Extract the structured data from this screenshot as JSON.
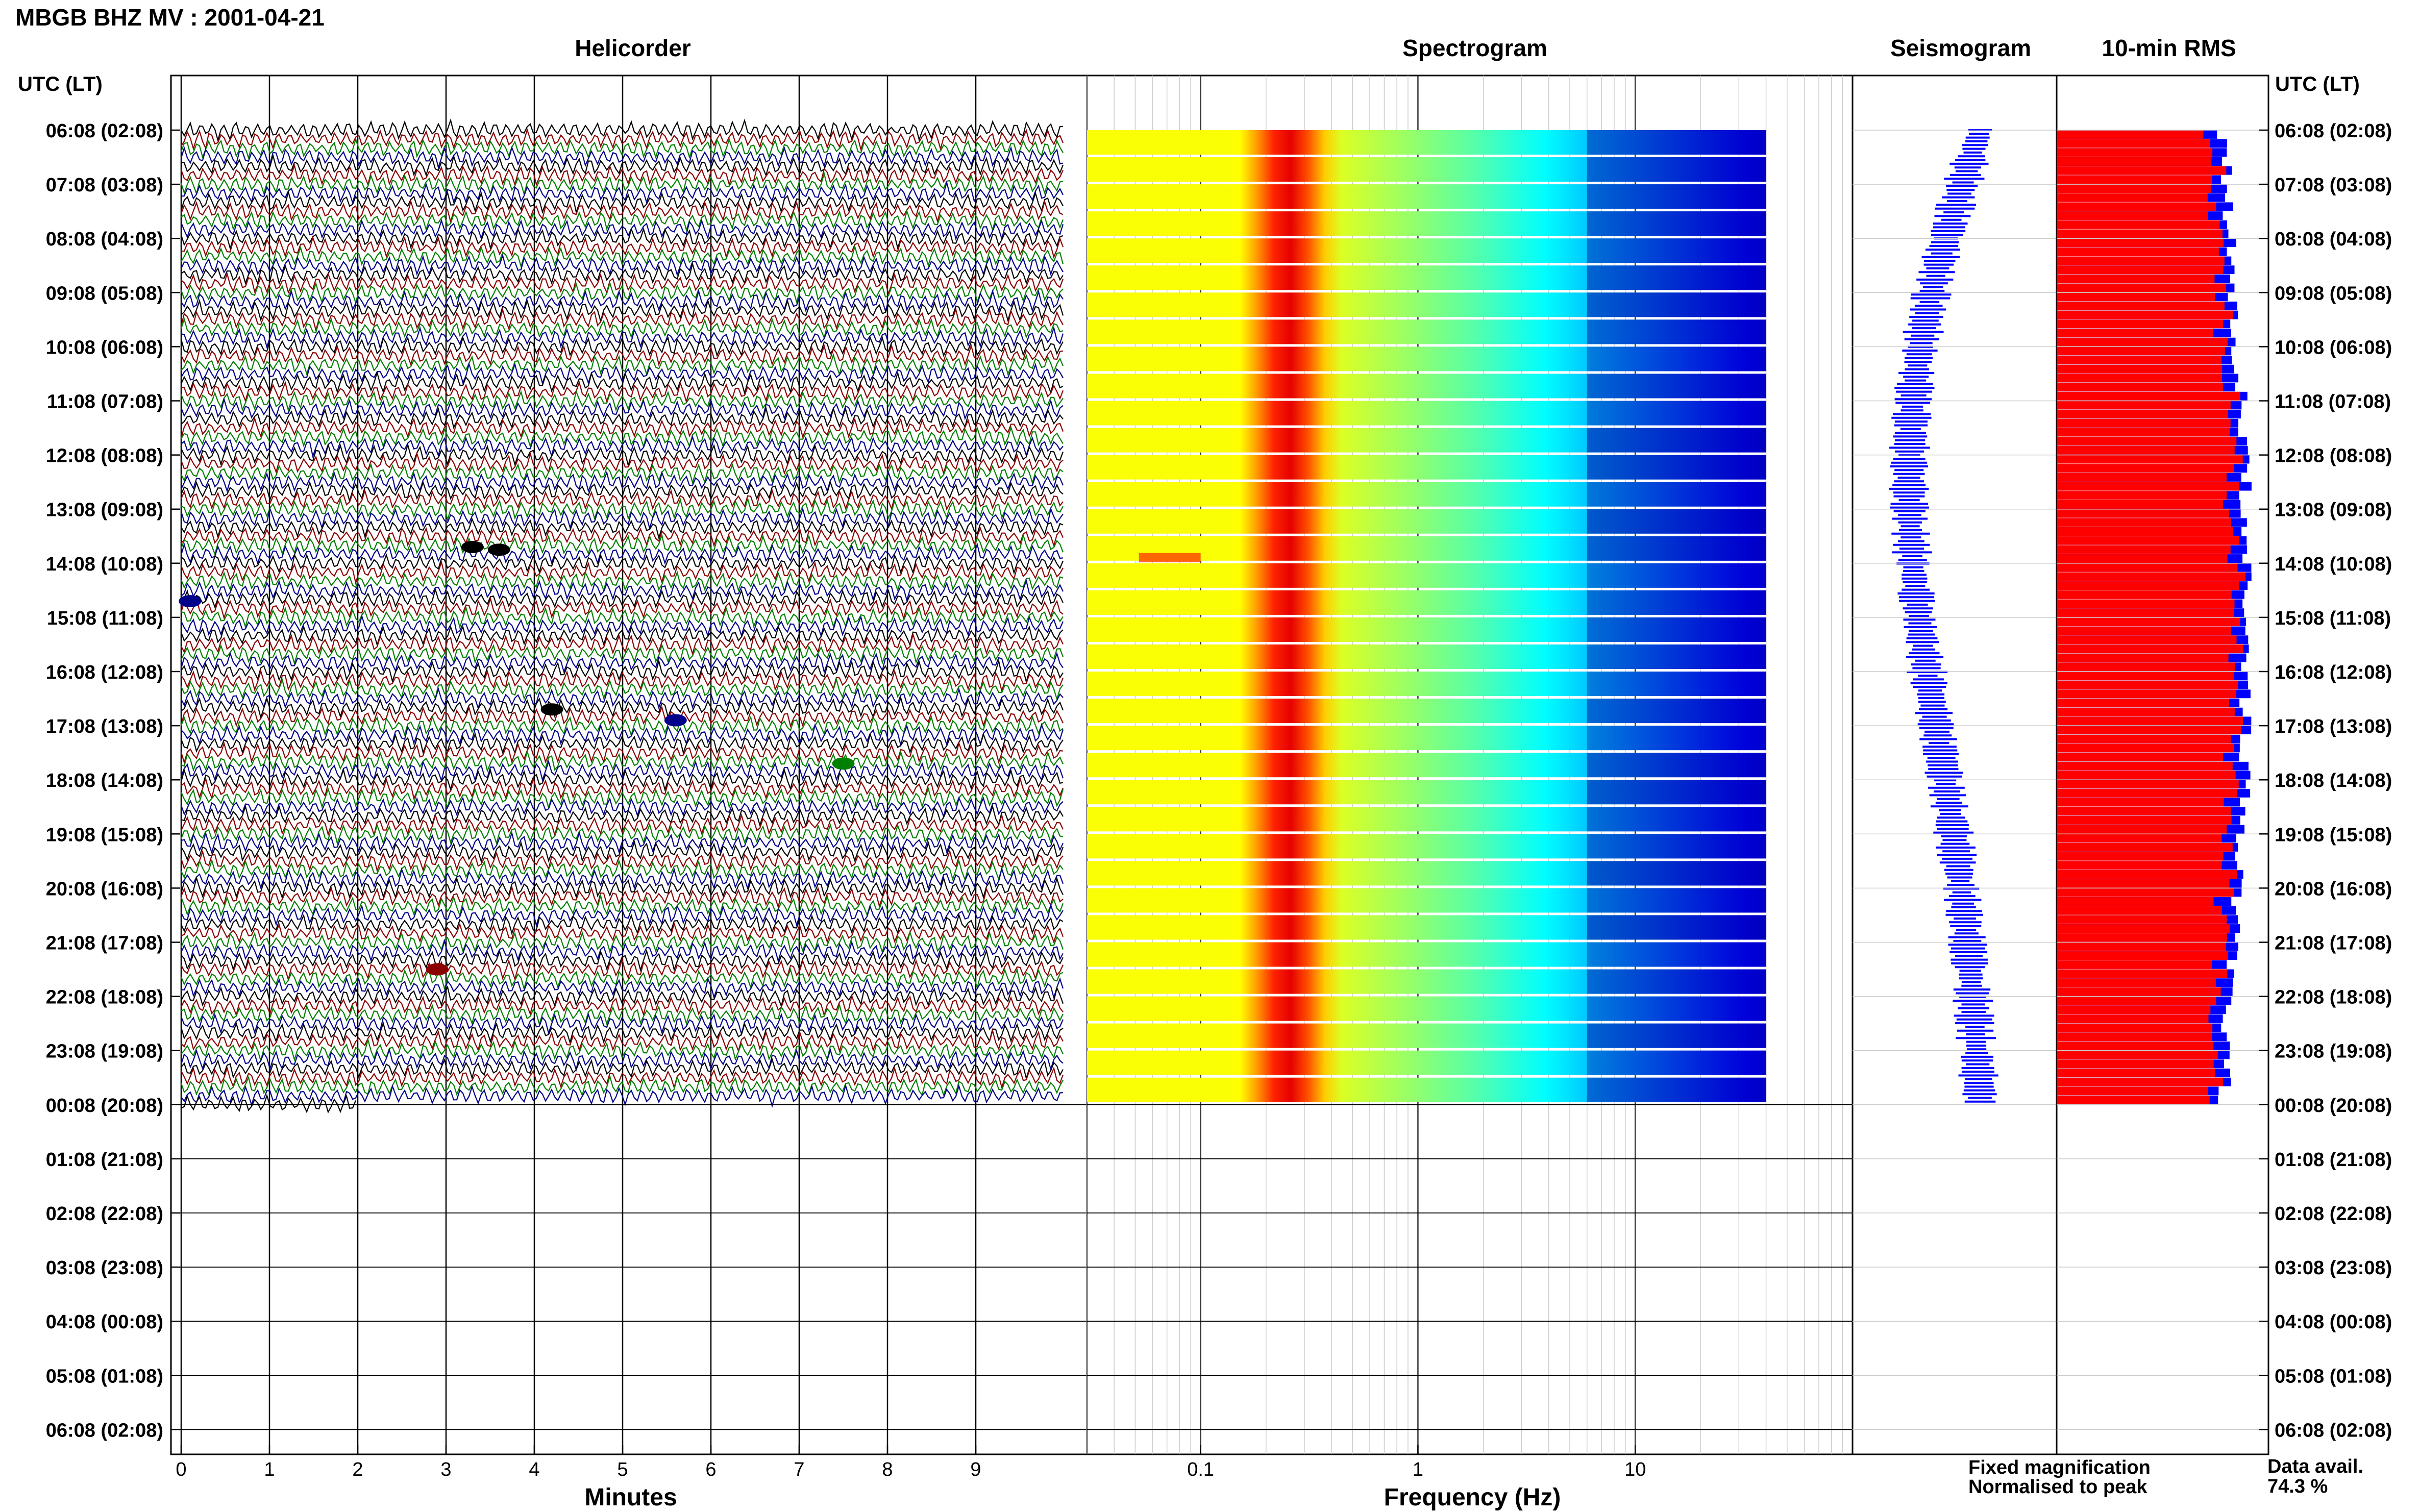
{
  "header": {
    "title": "MBGB BHZ MV : 2001-04-21"
  },
  "panels": {
    "helicorder": "Helicorder",
    "spectrogram": "Spectrogram",
    "seismogram": "Seismogram",
    "rms": "10-min RMS"
  },
  "axes": {
    "left_label": "UTC (LT)",
    "right_label": "UTC (LT)",
    "minutes_label": "Minutes",
    "frequency_label": "Frequency (Hz)"
  },
  "legend": {
    "fixed": "Fixed magnification",
    "normalised": "Normalised to peak",
    "fixed_color": "#0000ff",
    "normalised_color": "#ff0000"
  },
  "availability": {
    "label": "Data avail.",
    "value": "74.3 %"
  },
  "chart_data": {
    "type": "heatmap",
    "time_labels": [
      "06:08 (02:08)",
      "07:08 (03:08)",
      "08:08 (04:08)",
      "09:08 (05:08)",
      "10:08 (06:08)",
      "11:08 (07:08)",
      "12:08 (08:08)",
      "13:08 (09:08)",
      "14:08 (10:08)",
      "15:08 (11:08)",
      "16:08 (12:08)",
      "17:08 (13:08)",
      "18:08 (14:08)",
      "19:08 (15:08)",
      "20:08 (16:08)",
      "21:08 (17:08)",
      "22:08 (18:08)",
      "23:08 (19:08)",
      "00:08 (20:08)",
      "01:08 (21:08)",
      "02:08 (22:08)",
      "03:08 (23:08)",
      "04:08 (00:08)",
      "05:08 (01:08)",
      "06:08 (02:08)"
    ],
    "minutes_ticks": [
      0,
      1,
      2,
      3,
      4,
      5,
      6,
      7,
      8,
      9
    ],
    "minutes_range": [
      0,
      10
    ],
    "frequency_ticks": [
      "0.1",
      "1",
      "10"
    ],
    "frequency_tick_values": [
      0.1,
      1,
      10
    ],
    "frequency_range": [
      0.03,
      100
    ],
    "frequency_data_max": 40,
    "hours_with_data": 18,
    "helicorder_colors": [
      "#000000",
      "#8b0000",
      "#008000",
      "#00008b"
    ],
    "rms_series": [
      {
        "name": "Fixed magnification",
        "color": "#0000ff"
      },
      {
        "name": "Normalised to peak",
        "color": "#ff0000"
      }
    ]
  }
}
